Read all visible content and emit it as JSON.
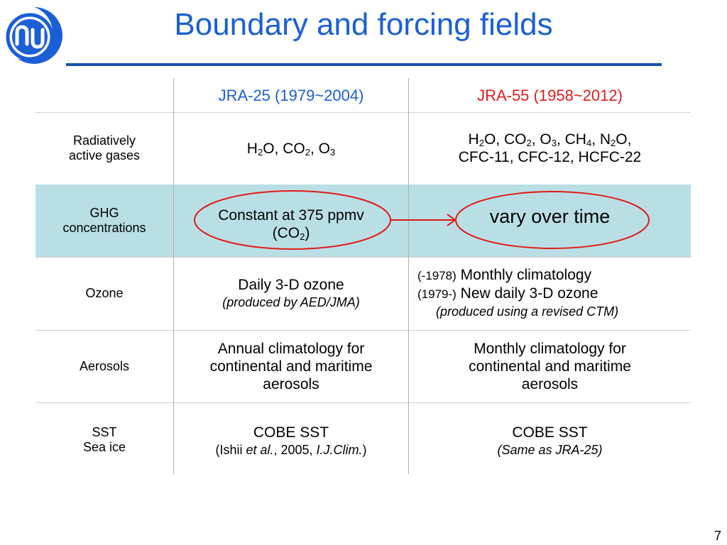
{
  "title": "Boundary and forcing fields",
  "page_number": "7",
  "header": {
    "col2": "JRA-25 (1979~2004)",
    "col3": "JRA-55 (1958~2012)"
  },
  "rows": [
    {
      "label": "Radiatively active gases",
      "label_lines": [
        "Radiatively",
        "active gases"
      ],
      "jra25": {
        "h2o": "H",
        "h2o_sub": "2",
        "h2o_rest": "O, CO",
        "co2_sub": "2",
        "o3": ", O",
        "o3_sub": "3"
      },
      "jra55": {
        "line1": {
          "a": "H",
          "s1": "2",
          "b": "O, CO",
          "s2": "2",
          "c": ", O",
          "s3": "3",
          "d": ", CH",
          "s4": "4",
          "e": ", N",
          "s5": "2",
          "f": "O,"
        },
        "line2": "CFC-11, CFC-12, HCFC-22"
      }
    },
    {
      "label_lines": [
        "GHG",
        "concentrations"
      ],
      "jra25": {
        "line1": "Constant at 375 ppmv",
        "line2_pre": "(CO",
        "line2_sub": "2",
        "line2_post": ")"
      },
      "jra55": "vary over time"
    },
    {
      "label": "Ozone",
      "jra25": {
        "main": "Daily 3-D ozone",
        "note": "(produced by AED/JMA)"
      },
      "jra55": {
        "a_period": "(-1978)",
        "a_text": "Monthly climatology",
        "b_period": "(1979-)",
        "b_text": "New daily 3-D ozone",
        "note": "(produced using a revised CTM)"
      }
    },
    {
      "label": "Aerosols",
      "jra25": [
        "Annual climatology for",
        "continental and maritime",
        "aerosols"
      ],
      "jra55": [
        "Monthly climatology for",
        "continental and maritime",
        "aerosols"
      ]
    },
    {
      "label_lines": [
        "SST",
        "Sea ice"
      ],
      "jra25": {
        "main": "COBE SST",
        "ref_pre": "(Ishii ",
        "ref_etal": "et al.",
        "ref_mid": ", 2005, ",
        "ref_journal": "I.J.Clim.",
        "ref_post": ")"
      },
      "jra55": {
        "main": "COBE SST",
        "note": "(Same as JRA-25)"
      }
    }
  ],
  "colors": {
    "title": "#1a5fd6",
    "jra25_header": "#1a5fd6",
    "jra55_header": "#e21a1a",
    "highlight_row": "#b9dfe5",
    "annotation": "#e21a1a"
  }
}
